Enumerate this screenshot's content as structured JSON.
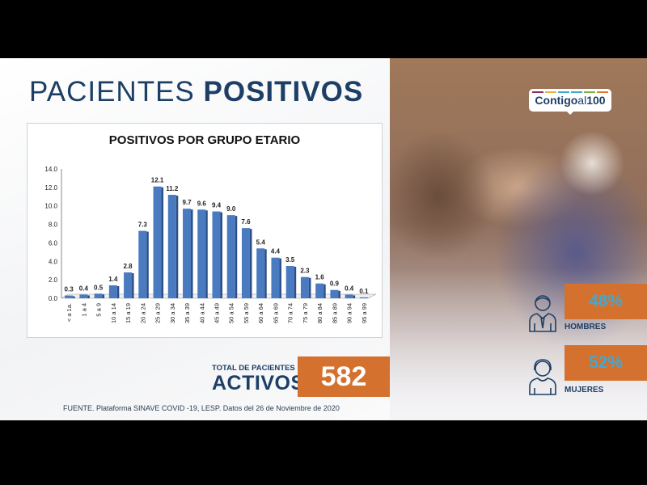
{
  "header": {
    "title_light": "PACIENTES",
    "title_bold": "POSITIVOS"
  },
  "chart_data": {
    "type": "bar",
    "title": "POSITIVOS POR GRUPO ETARIO",
    "categories": [
      "< a 1a.",
      "1 a 4",
      "5 a 9",
      "10 a 14",
      "15 a 19",
      "20 a 24",
      "25 a 29",
      "30 a 34",
      "35 a 39",
      "40 a 44",
      "45 a 49",
      "50 a 54",
      "55 a 59",
      "60 a 64",
      "65 a 69",
      "70 a 74",
      "75 a 79",
      "80 a 84",
      "85 a 89",
      "90 a 94",
      "95 a 99"
    ],
    "values": [
      0.3,
      0.4,
      0.5,
      1.4,
      2.8,
      7.3,
      12.1,
      11.2,
      9.7,
      9.6,
      9.4,
      9.0,
      7.6,
      5.4,
      4.4,
      3.5,
      2.3,
      1.6,
      0.9,
      0.4,
      0.1
    ],
    "value_labels": [
      "0.3",
      "0.4",
      "0.5",
      "1.4",
      "2.8",
      "7.3",
      "12.1",
      "11.2",
      "9.7",
      "9.6",
      "9.4",
      "9.0",
      "7.6",
      "5.4",
      "4.4",
      "3.5",
      "2.3",
      "1.6",
      "0.9",
      "0.4",
      "0.1"
    ],
    "ylim": [
      0,
      14
    ],
    "yticks": [
      "0.0",
      "2.0",
      "4.0",
      "6.0",
      "8.0",
      "10.0",
      "12.0",
      "14.0"
    ],
    "xlabel": "",
    "ylabel": "",
    "bar_color": "#4a7ac0",
    "grid": false
  },
  "total": {
    "label": "TOTAL DE PACIENTES",
    "big": "ACTIVOS",
    "value": "582"
  },
  "source": "FUENTE. Plataforma SINAVE COVID -19, LESP. Datos del 26 de Noviembre de 2020",
  "logo": {
    "text_a": "Contigo",
    "text_b": "al",
    "text_c": "100",
    "bar_colors": [
      "#8e2a5e",
      "#e8b33a",
      "#3fa9d6",
      "#3fa9d6",
      "#7cb342",
      "#e07a2e"
    ]
  },
  "gender": {
    "men": {
      "percent": "48%",
      "label": "HOMBRES",
      "icon": "man-icon"
    },
    "women": {
      "percent": "52%",
      "label": "MUJERES",
      "icon": "woman-icon"
    }
  },
  "colors": {
    "navy": "#1d3f66",
    "orange": "#d4712e",
    "cyan": "#3fa9d6"
  }
}
